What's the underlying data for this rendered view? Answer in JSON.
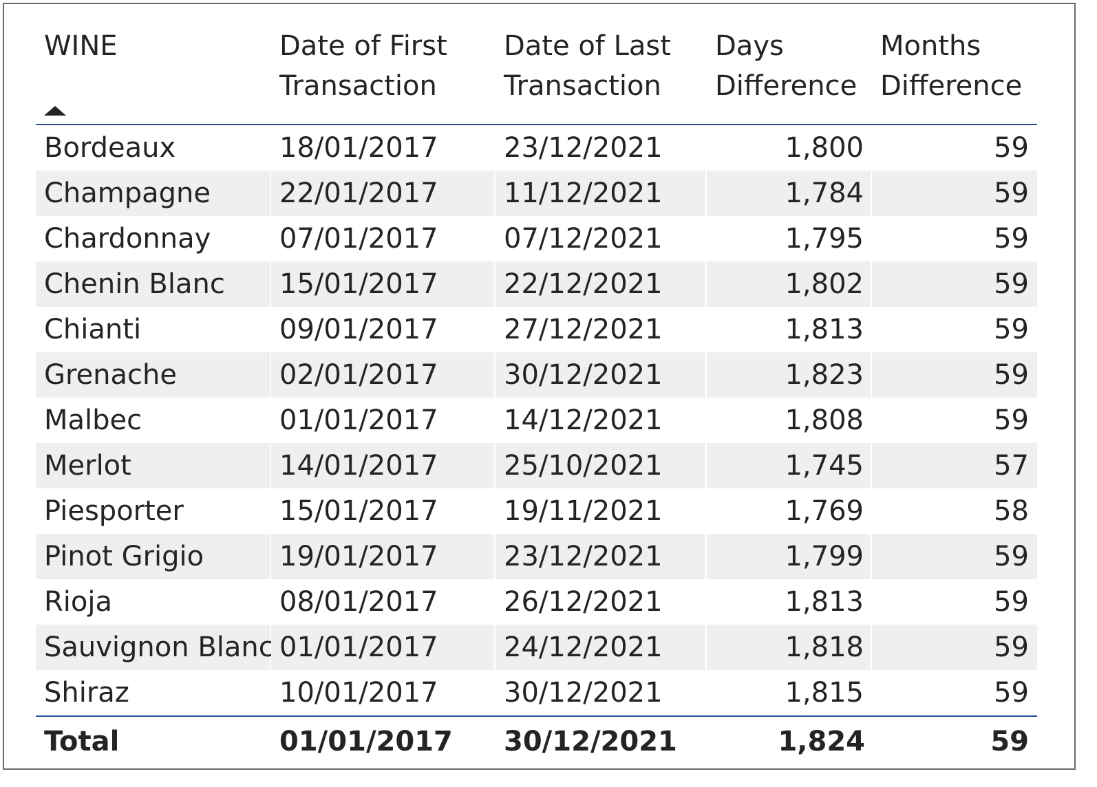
{
  "table": {
    "columns": {
      "wine": "WINE",
      "first_line1": "Date of First",
      "first_line2": "Transaction",
      "last_line1": "Date of Last",
      "last_line2": "Transaction",
      "days_line1": "Days",
      "days_line2": "Difference",
      "months_line1": "Months",
      "months_line2": "Difference"
    },
    "sort": {
      "column": "WINE",
      "direction": "ascending",
      "icon": "sort-ascending-icon"
    },
    "rows": [
      {
        "wine": "Bordeaux",
        "first": "18/01/2017",
        "last": "23/12/2021",
        "days": "1,800",
        "months": "59"
      },
      {
        "wine": "Champagne",
        "first": "22/01/2017",
        "last": "11/12/2021",
        "days": "1,784",
        "months": "59"
      },
      {
        "wine": "Chardonnay",
        "first": "07/01/2017",
        "last": "07/12/2021",
        "days": "1,795",
        "months": "59"
      },
      {
        "wine": "Chenin Blanc",
        "first": "15/01/2017",
        "last": "22/12/2021",
        "days": "1,802",
        "months": "59"
      },
      {
        "wine": "Chianti",
        "first": "09/01/2017",
        "last": "27/12/2021",
        "days": "1,813",
        "months": "59"
      },
      {
        "wine": "Grenache",
        "first": "02/01/2017",
        "last": "30/12/2021",
        "days": "1,823",
        "months": "59"
      },
      {
        "wine": "Malbec",
        "first": "01/01/2017",
        "last": "14/12/2021",
        "days": "1,808",
        "months": "59"
      },
      {
        "wine": "Merlot",
        "first": "14/01/2017",
        "last": "25/10/2021",
        "days": "1,745",
        "months": "57"
      },
      {
        "wine": "Piesporter",
        "first": "15/01/2017",
        "last": "19/11/2021",
        "days": "1,769",
        "months": "58"
      },
      {
        "wine": "Pinot Grigio",
        "first": "19/01/2017",
        "last": "23/12/2021",
        "days": "1,799",
        "months": "59"
      },
      {
        "wine": "Rioja",
        "first": "08/01/2017",
        "last": "26/12/2021",
        "days": "1,813",
        "months": "59"
      },
      {
        "wine": "Sauvignon Blanc",
        "first": "01/01/2017",
        "last": "24/12/2021",
        "days": "1,818",
        "months": "59"
      },
      {
        "wine": "Shiraz",
        "first": "10/01/2017",
        "last": "30/12/2021",
        "days": "1,815",
        "months": "59"
      }
    ],
    "total": {
      "wine": "Total",
      "first": "01/01/2017",
      "last": "30/12/2021",
      "days": "1,824",
      "months": "59"
    }
  },
  "colors": {
    "header_rule": "#2b4a9b",
    "band": "#efefef",
    "text": "#252423",
    "frame": "#6b6b6b"
  }
}
